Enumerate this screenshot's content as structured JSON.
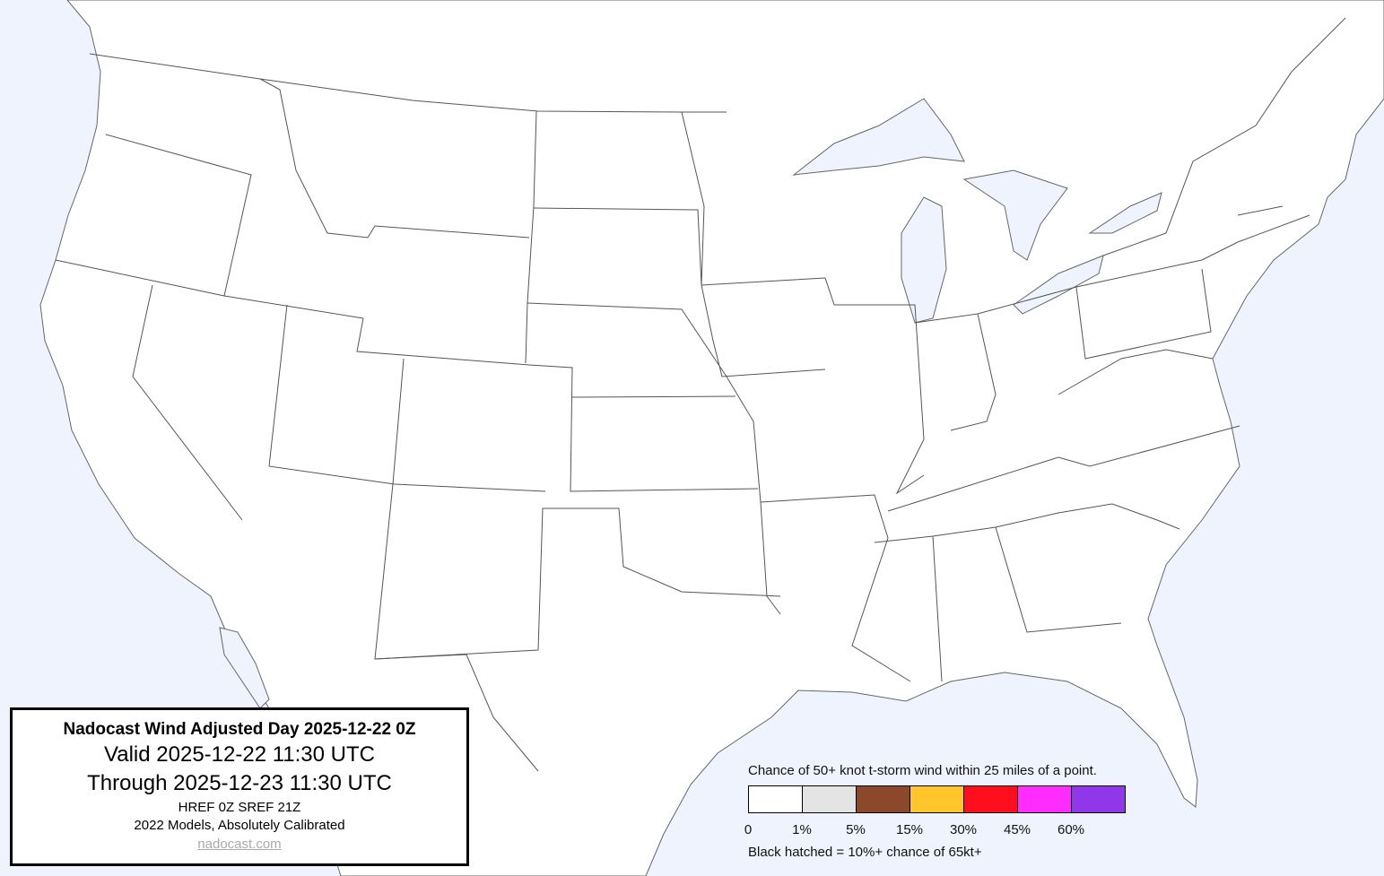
{
  "info": {
    "title": "Nadocast Wind Adjusted Day 2025-12-22 0Z",
    "valid": "Valid 2025-12-22 11:30 UTC",
    "through": "Through 2025-12-23 11:30 UTC",
    "models": "HREF 0Z SREF 21Z",
    "calibration": "2022 Models, Absolutely Calibrated",
    "link": "nadocast.com"
  },
  "legend": {
    "caption": "Chance of 50+ knot t-storm wind within 25 miles of a point.",
    "bins": [
      {
        "label": "0",
        "color": "#ffffff"
      },
      {
        "label": "1%",
        "color": "#e4e4e4"
      },
      {
        "label": "5%",
        "color": "#8b482a"
      },
      {
        "label": "15%",
        "color": "#ffc52b"
      },
      {
        "label": "30%",
        "color": "#ff0f1e"
      },
      {
        "label": "45%",
        "color": "#ff2cfd"
      },
      {
        "label": "60%",
        "color": "#9037ea"
      }
    ],
    "hatch_note": "Black hatched = 10%+ chance of 65kt+"
  },
  "map": {
    "water_color": "#eef3fe",
    "land_color": "#ffffff",
    "border_color": "#555555"
  }
}
